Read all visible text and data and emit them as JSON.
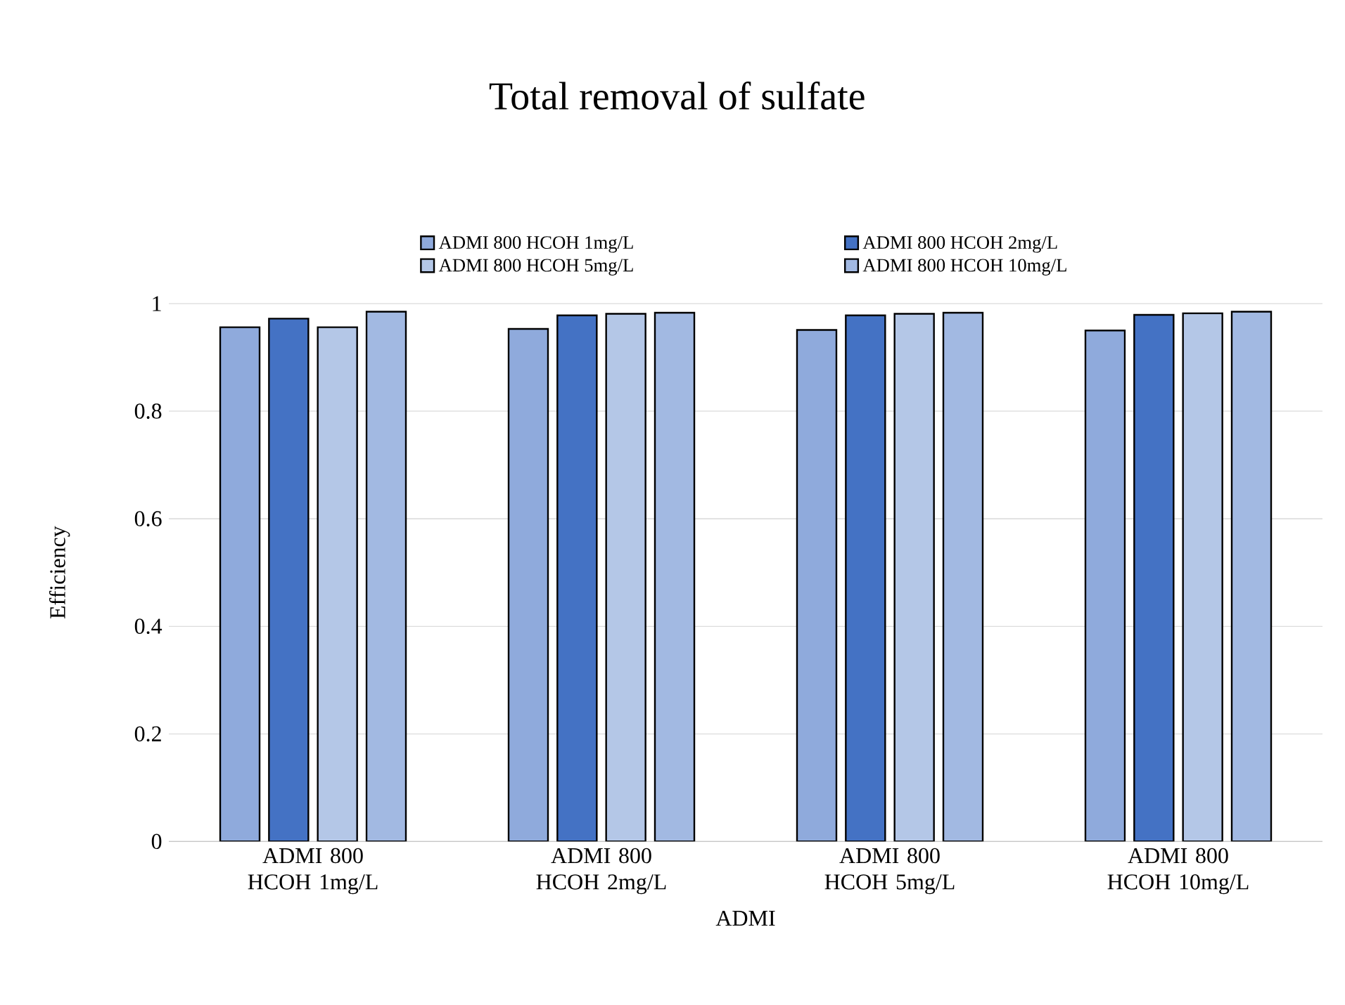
{
  "chart_data": {
    "type": "bar",
    "title": "Total removal of  sulfate",
    "xlabel": "ADMI",
    "ylabel": "Efficiency",
    "categories": [
      "ADMI 800 HCOH 1mg/L",
      "ADMI 800 HCOH 2mg/L",
      "ADMI 800 HCOH 5mg/L",
      "ADMI 800 HCOH 10mg/L"
    ],
    "series": [
      {
        "name": "ADMI 800 HCOH 1mg/L",
        "color": "#8faadc",
        "values": [
          0.956,
          0.953,
          0.951,
          0.95
        ]
      },
      {
        "name": "ADMI 800 HCOH 2mg/L",
        "color": "#4472c4",
        "values": [
          0.972,
          0.978,
          0.978,
          0.979
        ]
      },
      {
        "name": "ADMI 800 HCOH 5mg/L",
        "color": "#b4c7e7",
        "values": [
          0.956,
          0.981,
          0.981,
          0.982
        ]
      },
      {
        "name": "ADMI 800 HCOH 10mg/L",
        "color": "#a2b9e2",
        "values": [
          0.985,
          0.983,
          0.983,
          0.985
        ]
      }
    ],
    "ylim": [
      0,
      1
    ],
    "yticks": [
      0,
      0.2,
      0.4,
      0.6,
      0.8,
      1
    ],
    "grid": "y",
    "legend": "top"
  }
}
